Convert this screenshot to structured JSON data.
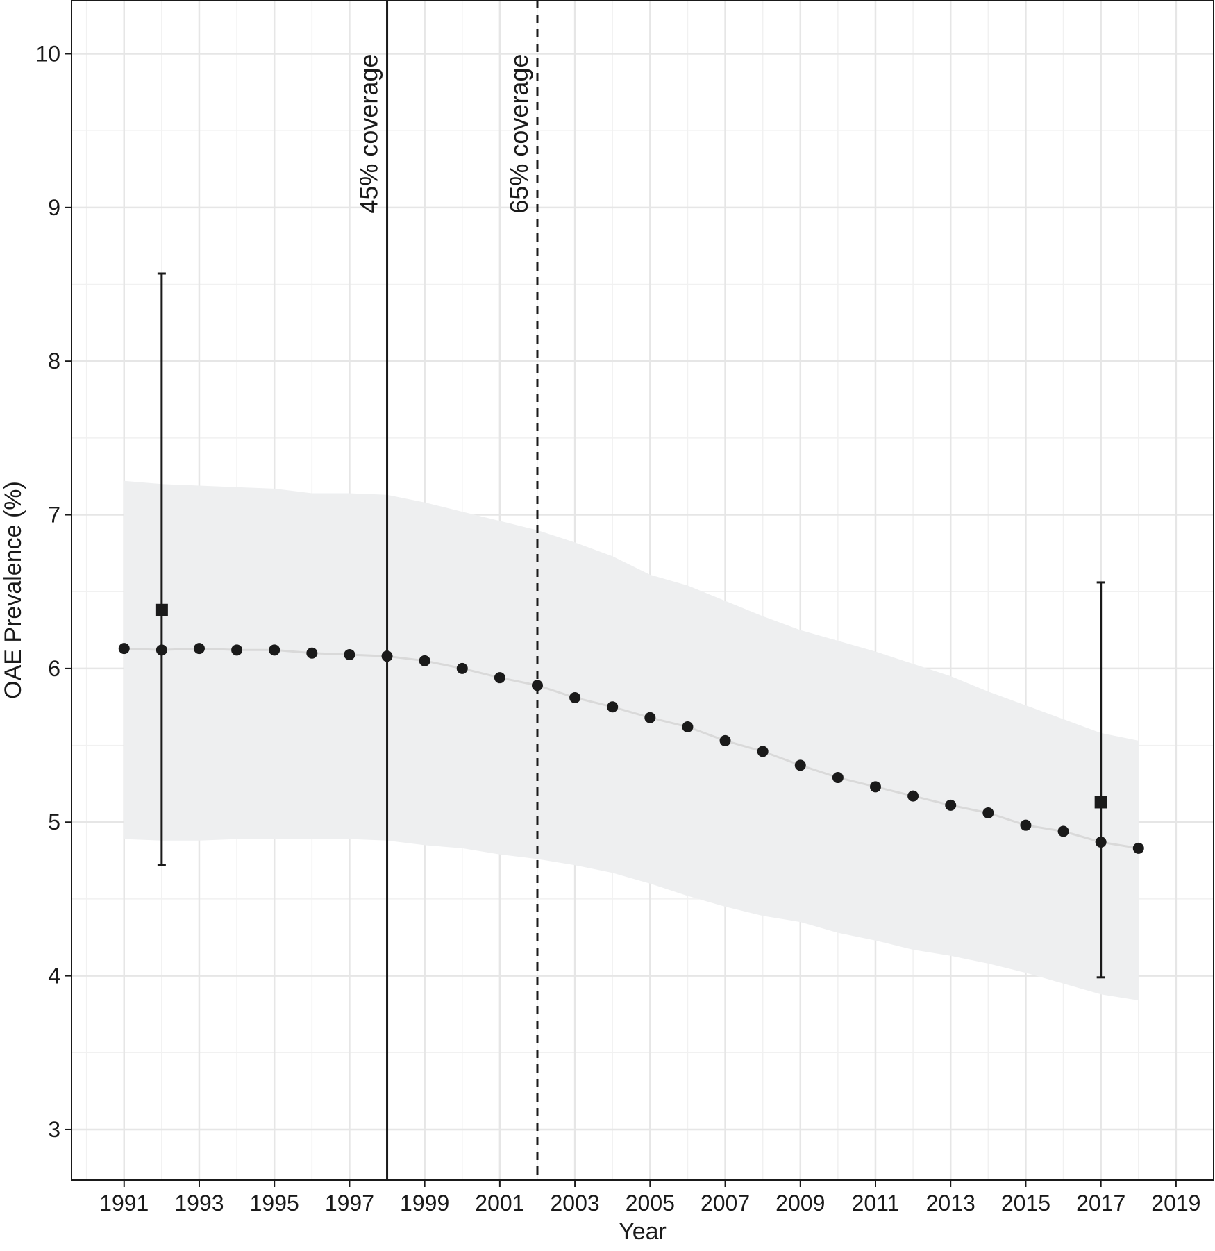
{
  "chart_data": {
    "type": "scatter",
    "title": "",
    "xlabel": "Year",
    "ylabel": "OAE Prevalence (%)",
    "xlim": [
      1989.6,
      2020.0
    ],
    "ylim": [
      2.67,
      10.35
    ],
    "x_ticks": [
      1991,
      1993,
      1995,
      1997,
      1999,
      2001,
      2003,
      2005,
      2007,
      2009,
      2011,
      2013,
      2015,
      2017,
      2019
    ],
    "x_tick_labels": [
      "1991",
      "1993",
      "1995",
      "1997",
      "1999",
      "2001",
      "2003",
      "2005",
      "2007",
      "2009",
      "2011",
      "2013",
      "2015",
      "2017",
      "2019"
    ],
    "y_ticks": [
      3,
      4,
      5,
      6,
      7,
      8,
      9,
      10
    ],
    "y_tick_labels": [
      "3",
      "4",
      "5",
      "6",
      "7",
      "8",
      "9",
      "10"
    ],
    "grid": true,
    "series": [
      {
        "kind": "points_with_line",
        "x": [
          1991,
          1992,
          1993,
          1994,
          1995,
          1996,
          1997,
          1998,
          1999,
          2000,
          2001,
          2002,
          2003,
          2004,
          2005,
          2006,
          2007,
          2008,
          2009,
          2010,
          2011,
          2012,
          2013,
          2014,
          2015,
          2016,
          2017,
          2018
        ],
        "y": [
          6.13,
          6.12,
          6.13,
          6.12,
          6.12,
          6.1,
          6.09,
          6.08,
          6.05,
          6.0,
          5.94,
          5.89,
          5.81,
          5.75,
          5.68,
          5.62,
          5.53,
          5.46,
          5.37,
          5.29,
          5.23,
          5.17,
          5.11,
          5.06,
          4.98,
          4.94,
          4.87,
          4.83
        ],
        "color": "#1a1a1a",
        "line_color": "#d9d9d9"
      },
      {
        "kind": "uncertainty_band",
        "x": [
          1991,
          1992,
          1993,
          1994,
          1995,
          1996,
          1997,
          1998,
          1999,
          2000,
          2001,
          2002,
          2003,
          2004,
          2005,
          2006,
          2007,
          2008,
          2009,
          2010,
          2011,
          2012,
          2013,
          2014,
          2015,
          2016,
          2017,
          2018
        ],
        "lower": [
          4.89,
          4.88,
          4.88,
          4.89,
          4.89,
          4.89,
          4.89,
          4.88,
          4.85,
          4.83,
          4.79,
          4.76,
          4.72,
          4.67,
          4.6,
          4.52,
          4.45,
          4.39,
          4.35,
          4.28,
          4.23,
          4.17,
          4.13,
          4.08,
          4.02,
          3.95,
          3.88,
          3.84
        ],
        "upper": [
          7.22,
          7.2,
          7.19,
          7.18,
          7.17,
          7.14,
          7.14,
          7.13,
          7.08,
          7.02,
          6.96,
          6.9,
          6.82,
          6.73,
          6.61,
          6.54,
          6.44,
          6.34,
          6.25,
          6.18,
          6.11,
          6.03,
          5.95,
          5.85,
          5.76,
          5.67,
          5.58,
          5.53
        ],
        "color": "#eeeff0"
      },
      {
        "kind": "observed_with_error_bars",
        "x": [
          1992,
          2017
        ],
        "y": [
          6.38,
          5.13
        ],
        "lower": [
          4.72,
          3.99
        ],
        "upper": [
          8.57,
          6.56
        ],
        "marker": "square",
        "color": "#1a1a1a"
      }
    ],
    "vlines": [
      {
        "x": 1998,
        "style": "solid",
        "label": "45% coverage"
      },
      {
        "x": 2002,
        "style": "dashed",
        "label": "65% coverage"
      }
    ]
  }
}
